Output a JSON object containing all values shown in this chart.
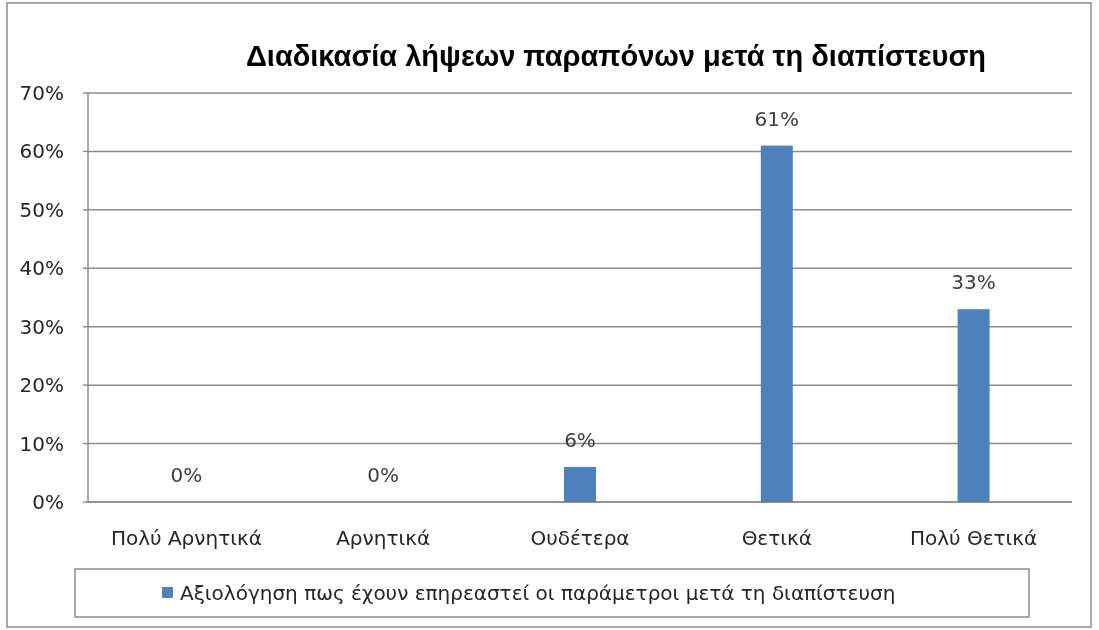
{
  "chart_data": {
    "type": "bar",
    "title": "Διαδικασία λήψεων παραπόνων μετά τη διαπίστευση",
    "categories": [
      "Πολύ Αρνητικά",
      "Αρνητικά",
      "Ουδέτερα",
      "Θετικά",
      "Πολύ Θετικά"
    ],
    "series": [
      {
        "name": "Αξιολόγηση πως έχουν επηρεαστεί οι παράμετροι μετά τη διαπίστευση",
        "color": "#4f81bd",
        "values": [
          0,
          0,
          6,
          61,
          33
        ],
        "value_labels": [
          "0%",
          "0%",
          "6%",
          "61%",
          "33%"
        ]
      }
    ],
    "ylim": [
      0,
      70
    ],
    "yticks": [
      {
        "value": 0,
        "label": "0%"
      },
      {
        "value": 10,
        "label": "10%"
      },
      {
        "value": 20,
        "label": "20%"
      },
      {
        "value": 30,
        "label": "30%"
      },
      {
        "value": 40,
        "label": "40%"
      },
      {
        "value": 50,
        "label": "50%"
      },
      {
        "value": 60,
        "label": "60%"
      },
      {
        "value": 70,
        "label": "70%"
      }
    ],
    "grid": "y",
    "legend": "bottom"
  }
}
